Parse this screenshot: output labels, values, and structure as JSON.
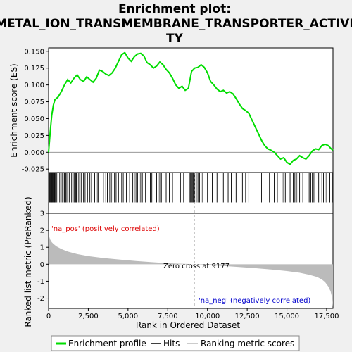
{
  "title_line1": "Enrichment plot:",
  "title_line2": "METAL_ION_TRANSMEMBRANE_TRANSPORTER_ACTIVI",
  "title_line3": "TY",
  "colors": {
    "enrichment": "#00dd00",
    "hits": "#000000",
    "ranking": "#bbbbbb",
    "pos_label": "#dd0000",
    "neg_label": "#0000cc",
    "zero_line": "#aaaaaa",
    "background": "#f0f0f0",
    "plot_bg": "#ffffff"
  },
  "chart_data": {
    "type": "line",
    "top_panel": {
      "ylabel": "Enrichment score (ES)",
      "ylim": [
        -0.03,
        0.155
      ],
      "yticks": [
        -0.025,
        0.0,
        0.025,
        0.05,
        0.075,
        0.1,
        0.125,
        0.15
      ],
      "ytick_labels": [
        "-0.025",
        "0.000",
        "0.025",
        "0.050",
        "0.075",
        "0.100",
        "0.125",
        "0.150"
      ],
      "series": [
        {
          "name": "Enrichment profile",
          "x": [
            0,
            100,
            200,
            300,
            400,
            600,
            800,
            1000,
            1200,
            1400,
            1600,
            1800,
            2000,
            2200,
            2400,
            2600,
            2800,
            3000,
            3200,
            3400,
            3600,
            3800,
            4000,
            4200,
            4400,
            4600,
            4800,
            5000,
            5200,
            5400,
            5600,
            5800,
            6000,
            6200,
            6400,
            6600,
            6800,
            7000,
            7200,
            7400,
            7600,
            7800,
            8000,
            8200,
            8400,
            8600,
            8800,
            9000,
            9200,
            9400,
            9600,
            9800,
            10000,
            10200,
            10400,
            10600,
            10800,
            11000,
            11200,
            11400,
            11600,
            11800,
            12000,
            12200,
            12400,
            12600,
            12800,
            13000,
            13200,
            13400,
            13600,
            13800,
            14000,
            14200,
            14400,
            14600,
            14800,
            15000,
            15200,
            15400,
            15600,
            15800,
            16000,
            16200,
            16400,
            16600,
            16800,
            17000,
            17200,
            17400,
            17600,
            17800,
            17900
          ],
          "y": [
            0.0,
            0.03,
            0.055,
            0.07,
            0.078,
            0.082,
            0.09,
            0.1,
            0.108,
            0.103,
            0.11,
            0.115,
            0.108,
            0.105,
            0.112,
            0.108,
            0.104,
            0.11,
            0.122,
            0.12,
            0.116,
            0.114,
            0.118,
            0.125,
            0.135,
            0.145,
            0.148,
            0.14,
            0.135,
            0.142,
            0.146,
            0.147,
            0.143,
            0.133,
            0.13,
            0.125,
            0.128,
            0.134,
            0.13,
            0.123,
            0.118,
            0.11,
            0.1,
            0.095,
            0.098,
            0.092,
            0.095,
            0.12,
            0.125,
            0.126,
            0.13,
            0.126,
            0.118,
            0.105,
            0.1,
            0.094,
            0.09,
            0.092,
            0.088,
            0.09,
            0.087,
            0.08,
            0.072,
            0.065,
            0.062,
            0.058,
            0.048,
            0.038,
            0.028,
            0.018,
            0.01,
            0.005,
            0.003,
            0.0,
            -0.005,
            -0.01,
            -0.008,
            -0.015,
            -0.018,
            -0.012,
            -0.01,
            -0.005,
            -0.008,
            -0.01,
            -0.005,
            0.002,
            0.005,
            0.004,
            0.01,
            0.012,
            0.01,
            0.005,
            0.003
          ]
        }
      ]
    },
    "hits_panel": {
      "hit_positions": [
        40,
        80,
        120,
        160,
        200,
        240,
        280,
        320,
        360,
        400,
        450,
        520,
        600,
        700,
        780,
        850,
        920,
        1000,
        1080,
        1150,
        1300,
        1450,
        1600,
        1650,
        1700,
        1750,
        1800,
        1900,
        2050,
        2200,
        2300,
        2450,
        2600,
        2700,
        2900,
        3000,
        3100,
        3150,
        3300,
        3450,
        3600,
        3700,
        3850,
        3950,
        4050,
        4150,
        4250,
        4400,
        4500,
        4600,
        4700,
        4900,
        5100,
        5300,
        5400,
        5500,
        5600,
        5700,
        5800,
        5900,
        6100,
        6400,
        6500,
        6800,
        6900,
        7000,
        7100,
        7400,
        7600,
        7800,
        8300,
        8500,
        8900,
        8950,
        9000,
        9050,
        9100,
        9150,
        9200,
        9300,
        9400,
        9500,
        9600,
        9700,
        10000,
        10300,
        10600,
        11000,
        11100,
        11300,
        11500,
        11800,
        12200,
        12400,
        12600,
        13400,
        13800,
        13900,
        14200,
        14400,
        14700,
        14800,
        14900,
        15000,
        15200,
        15400,
        15500,
        15600,
        15700,
        15800,
        16000,
        16400,
        16500,
        16600,
        16700,
        17000,
        17200,
        17300,
        17400,
        17500,
        17700,
        17850
      ]
    },
    "rank_panel": {
      "ylabel": "Ranked list metric (PreRanked)",
      "xlabel": "Rank in Ordered Dataset",
      "ylim": [
        -2.6,
        3.0
      ],
      "yticks": [
        -2,
        -1,
        0,
        1,
        2,
        3
      ],
      "ytick_labels": [
        "-2",
        "-1",
        "0",
        "1",
        "2",
        "3"
      ],
      "x": [
        0,
        50,
        100,
        200,
        300,
        500,
        800,
        1200,
        1800,
        2500,
        3500,
        4500,
        5500,
        6500,
        7500,
        8500,
        9177,
        10000,
        11000,
        12000,
        13000,
        14000,
        15000,
        15800,
        16400,
        16900,
        17200,
        17400,
        17600,
        17750,
        17850,
        17900
      ],
      "values": [
        1.85,
        1.6,
        1.45,
        1.3,
        1.2,
        1.05,
        0.9,
        0.75,
        0.6,
        0.48,
        0.36,
        0.27,
        0.19,
        0.12,
        0.06,
        0.02,
        0.0,
        -0.05,
        -0.1,
        -0.16,
        -0.23,
        -0.31,
        -0.4,
        -0.5,
        -0.62,
        -0.75,
        -0.9,
        -1.05,
        -1.3,
        -1.6,
        -2.0,
        -2.55
      ]
    },
    "xlim": [
      0,
      17900
    ],
    "xticks": [
      0,
      2500,
      5000,
      7500,
      10000,
      12500,
      15000,
      17500
    ],
    "xtick_labels": [
      "0",
      "2,500",
      "5,000",
      "7,500",
      "10,000",
      "12,500",
      "15,000",
      "17,500"
    ],
    "zero_cross_rank": 9177,
    "zero_cross_label": "Zero cross at 9177",
    "pos_label": "'na_pos' (positively correlated)",
    "neg_label": "'na_neg' (negatively correlated)",
    "legend": [
      "Enrichment profile",
      "Hits",
      "Ranking metric scores"
    ]
  }
}
